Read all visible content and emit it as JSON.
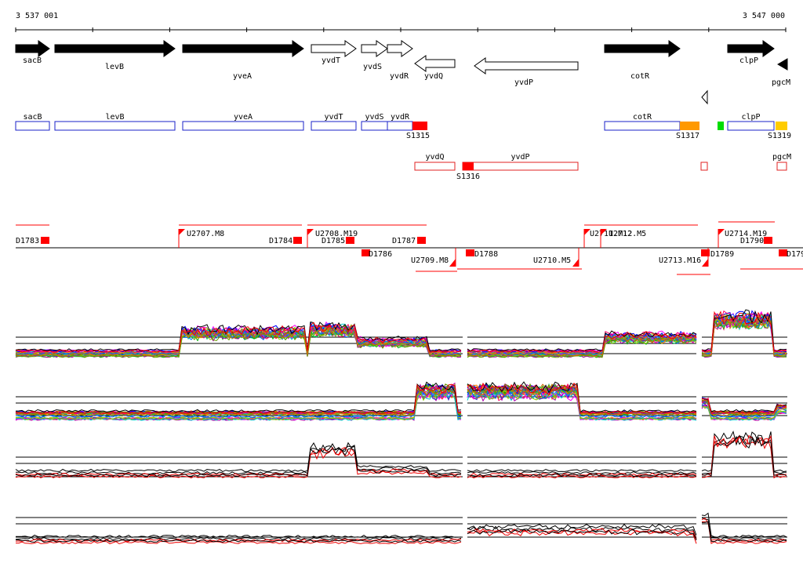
{
  "coords": {
    "start": "3 537 001",
    "end": "3 547 000"
  },
  "colors": {
    "gene_fill": "#000000",
    "gene_outline": "#000000",
    "transcript_plus": "#1a22c8",
    "transcript_minus": "#e22222",
    "segment_red": "#ff0000",
    "segment_orange": "#ff9900",
    "segment_gold": "#ffcc00",
    "segment_green": "#00dd00",
    "series_black": "#000000",
    "series_red": "#ee0000"
  },
  "genes": [
    {
      "name": "sacB",
      "strand": "+",
      "filled": true
    },
    {
      "name": "levB",
      "strand": "+",
      "filled": true
    },
    {
      "name": "yveA",
      "strand": "+",
      "filled": true
    },
    {
      "name": "yvdT",
      "strand": "+",
      "filled": false
    },
    {
      "name": "yvdS",
      "strand": "+",
      "filled": false
    },
    {
      "name": "yvdR",
      "strand": "+",
      "filled": false
    },
    {
      "name": "yvdQ",
      "strand": "-",
      "filled": false
    },
    {
      "name": "yvdP",
      "strand": "-",
      "filled": false
    },
    {
      "name": "cotR",
      "strand": "+",
      "filled": true
    },
    {
      "name": "clpP",
      "strand": "+",
      "filled": true
    },
    {
      "name": "pgcM",
      "strand": "-",
      "filled": true
    }
  ],
  "transcripts_plus": [
    {
      "label": "sacB"
    },
    {
      "label": "levB"
    },
    {
      "label": "yveA"
    },
    {
      "label": "yvdT"
    },
    {
      "label": "yvdS"
    },
    {
      "label": "yvdR"
    },
    {
      "label": "cotR"
    },
    {
      "label": "clpP"
    }
  ],
  "transcripts_minus": [
    {
      "label": "yvdQ"
    },
    {
      "label": "yvdP"
    },
    {
      "label": "pgcM"
    }
  ],
  "segments": [
    {
      "label": "S1315",
      "color": "#ff0000"
    },
    {
      "label": "S1316",
      "color": "#ff0000"
    },
    {
      "label": "S1317",
      "color": "#ff9900"
    },
    {
      "label": "",
      "color": "#00dd00"
    },
    {
      "label": "S1319",
      "color": "#ffcc00"
    }
  ],
  "features_upper": [
    "D1783",
    "U2707.M8",
    "D1784",
    "U2708.M19",
    "D1785",
    "D1787",
    "U2711.M12",
    "U2712.M5",
    "U2714.M19",
    "D1790"
  ],
  "features_lower": [
    "D1786",
    "U2709.M8",
    "D1788",
    "U2710.M5",
    "U2713.M16",
    "D1789",
    "D179"
  ]
}
